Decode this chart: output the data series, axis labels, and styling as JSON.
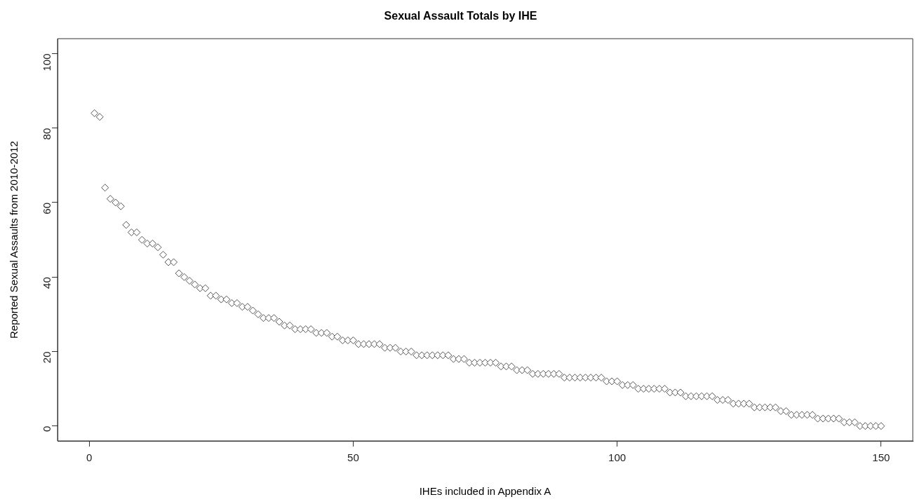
{
  "chart_data": {
    "type": "scatter",
    "title": "Sexual Assault Totals by IHE",
    "xlabel": "IHEs included in Appendix A",
    "ylabel": "Reported Sexual Assaults from 2010-2012",
    "x": [
      1,
      2,
      3,
      4,
      5,
      6,
      7,
      8,
      9,
      10,
      11,
      12,
      13,
      14,
      15,
      16,
      17,
      18,
      19,
      20,
      21,
      22,
      23,
      24,
      25,
      26,
      27,
      28,
      29,
      30,
      31,
      32,
      33,
      34,
      35,
      36,
      37,
      38,
      39,
      40,
      41,
      42,
      43,
      44,
      45,
      46,
      47,
      48,
      49,
      50,
      51,
      52,
      53,
      54,
      55,
      56,
      57,
      58,
      59,
      60,
      61,
      62,
      63,
      64,
      65,
      66,
      67,
      68,
      69,
      70,
      71,
      72,
      73,
      74,
      75,
      76,
      77,
      78,
      79,
      80,
      81,
      82,
      83,
      84,
      85,
      86,
      87,
      88,
      89,
      90,
      91,
      92,
      93,
      94,
      95,
      96,
      97,
      98,
      99,
      100,
      101,
      102,
      103,
      104,
      105,
      106,
      107,
      108,
      109,
      110,
      111,
      112,
      113,
      114,
      115,
      116,
      117,
      118,
      119,
      120,
      121,
      122,
      123,
      124,
      125,
      126,
      127,
      128,
      129,
      130,
      131,
      132,
      133,
      134,
      135,
      136,
      137,
      138,
      139,
      140,
      141,
      142,
      143,
      144,
      145,
      146,
      147,
      148,
      149,
      150
    ],
    "values": [
      84,
      83,
      64,
      61,
      60,
      59,
      54,
      52,
      52,
      50,
      49,
      49,
      48,
      46,
      44,
      44,
      41,
      40,
      39,
      38,
      37,
      37,
      35,
      35,
      34,
      34,
      33,
      33,
      32,
      32,
      31,
      30,
      29,
      29,
      29,
      28,
      27,
      27,
      26,
      26,
      26,
      26,
      25,
      25,
      25,
      24,
      24,
      23,
      23,
      23,
      22,
      22,
      22,
      22,
      22,
      21,
      21,
      21,
      20,
      20,
      20,
      19,
      19,
      19,
      19,
      19,
      19,
      19,
      18,
      18,
      18,
      17,
      17,
      17,
      17,
      17,
      17,
      16,
      16,
      16,
      15,
      15,
      15,
      14,
      14,
      14,
      14,
      14,
      14,
      13,
      13,
      13,
      13,
      13,
      13,
      13,
      13,
      12,
      12,
      12,
      11,
      11,
      11,
      10,
      10,
      10,
      10,
      10,
      10,
      9,
      9,
      9,
      8,
      8,
      8,
      8,
      8,
      8,
      7,
      7,
      7,
      6,
      6,
      6,
      6,
      5,
      5,
      5,
      5,
      5,
      4,
      4,
      3,
      3,
      3,
      3,
      3,
      2,
      2,
      2,
      2,
      2,
      1,
      1,
      1,
      0,
      0,
      0,
      0,
      0
    ],
    "color": "#555555",
    "marker": "diamond",
    "xlim": [
      -6,
      156
    ],
    "xticks": [
      0,
      50,
      100,
      150
    ],
    "ylim": [
      -4,
      104
    ],
    "yticks": [
      0,
      20,
      40,
      60,
      80,
      100
    ],
    "grid": false,
    "legend": false
  }
}
